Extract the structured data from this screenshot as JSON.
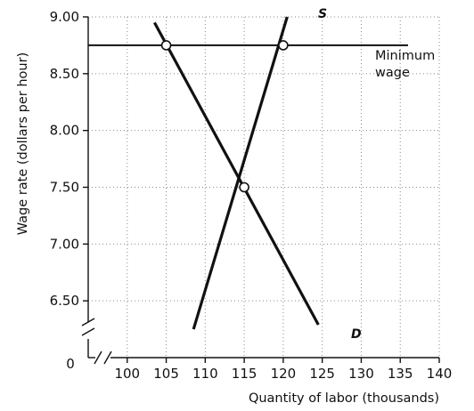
{
  "chart_data": {
    "type": "line",
    "xlabel": "Quantity of labor (thousands)",
    "ylabel": "Wage rate (dollars per hour)",
    "xlim": [
      95,
      140
    ],
    "ylim": [
      6.0,
      9.0
    ],
    "x_ticks": [
      "100",
      "105",
      "110",
      "115",
      "120",
      "125",
      "130",
      "135",
      "140"
    ],
    "y_ticks": [
      "6.50",
      "7.00",
      "7.50",
      "8.00",
      "8.50",
      "9.00"
    ],
    "origin_label": "0",
    "axis_breaks": [
      "x",
      "y"
    ],
    "grid": true,
    "series": [
      {
        "name": "S",
        "x": [
          108.5,
          120.5
        ],
        "y": [
          6.25,
          9.0
        ]
      },
      {
        "name": "D",
        "x": [
          103.5,
          124.5
        ],
        "y": [
          8.95,
          6.29
        ]
      }
    ],
    "reference_lines": [
      {
        "label": "Minimum\nwage",
        "y": 8.75,
        "x_range": [
          95,
          136
        ]
      }
    ],
    "points": [
      {
        "x": 105,
        "y": 8.75
      },
      {
        "x": 115,
        "y": 7.5
      },
      {
        "x": 120,
        "y": 8.75
      }
    ]
  }
}
